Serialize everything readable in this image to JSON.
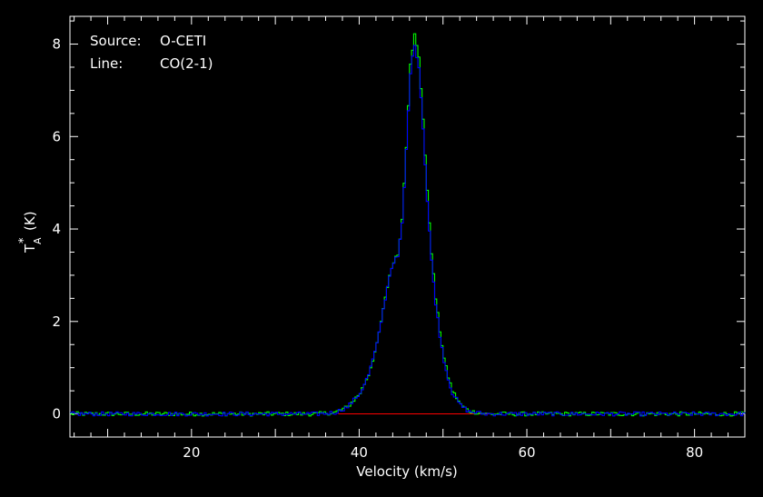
{
  "chart_data": {
    "type": "line",
    "title": "",
    "xlabel": "Velocity (km/s)",
    "ylabel_main": "T",
    "ylabel_sub": "A",
    "ylabel_sup": "*",
    "ylabel_unit": "(K)",
    "xlim": [
      5.5,
      86
    ],
    "ylim": [
      -0.5,
      8.6
    ],
    "x_ticks": [
      20,
      40,
      60,
      80
    ],
    "x_tick_labels": [
      "20",
      "40",
      "60",
      "80"
    ],
    "y_ticks": [
      0,
      2,
      4,
      6,
      8
    ],
    "y_tick_labels": [
      "0",
      "2",
      "4",
      "6",
      "8"
    ],
    "annotations": [
      {
        "key": "Source:",
        "value": "O-CETI"
      },
      {
        "key": "Line:",
        "value": "CO(2-1)"
      }
    ],
    "baseline": {
      "x_start": 37.5,
      "x_end": 55.5,
      "y": 0
    },
    "series": [
      {
        "color": "#00ff00",
        "x": [
          5.5,
          10,
          15,
          20,
          25,
          30,
          35,
          37,
          38.5,
          40,
          41,
          42,
          43,
          43.5,
          44,
          44.5,
          45,
          45.5,
          46,
          46.5,
          47,
          47.5,
          48,
          48.5,
          49,
          49.5,
          50,
          50.5,
          51,
          52,
          53,
          55,
          60,
          70,
          80,
          86
        ],
        "y": [
          0,
          0,
          0,
          0,
          0,
          0,
          0,
          0.03,
          0.15,
          0.45,
          0.85,
          1.5,
          2.5,
          3.0,
          3.3,
          3.45,
          4.2,
          5.8,
          7.6,
          8.2,
          7.7,
          6.4,
          4.8,
          3.5,
          2.5,
          1.8,
          1.2,
          0.8,
          0.5,
          0.2,
          0.06,
          0,
          0,
          0,
          0,
          0
        ]
      },
      {
        "color": "#0000ff",
        "x": [
          5.5,
          10,
          15,
          20,
          25,
          30,
          35,
          37,
          38.5,
          40,
          41,
          42,
          43,
          43.5,
          44,
          44.5,
          45,
          45.5,
          46,
          46.5,
          47,
          47.5,
          48,
          48.5,
          49,
          49.5,
          50,
          50.5,
          51,
          52,
          53,
          55,
          60,
          70,
          80,
          86
        ],
        "y": [
          0,
          0,
          0,
          0,
          0,
          0,
          0,
          0.03,
          0.15,
          0.45,
          0.85,
          1.5,
          2.5,
          3.0,
          3.3,
          3.4,
          4.1,
          5.7,
          7.4,
          8.0,
          7.5,
          6.2,
          4.6,
          3.3,
          2.4,
          1.7,
          1.15,
          0.75,
          0.45,
          0.18,
          0.05,
          0,
          0,
          0,
          0,
          0
        ]
      }
    ]
  }
}
